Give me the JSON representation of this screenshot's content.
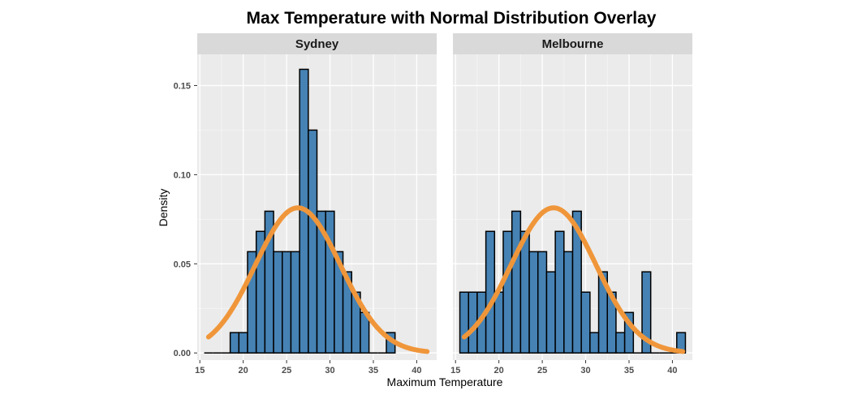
{
  "chart_data": {
    "type": "histogram",
    "title": "Max Temperature with Normal Distribution Overlay",
    "xlabel": "Maximum Temperature",
    "ylabel": "Density",
    "xlim": [
      14.7,
      42.3
    ],
    "ylim": [
      -0.004,
      0.1675
    ],
    "x_ticks": [
      15,
      20,
      25,
      30,
      35,
      40
    ],
    "x_tick_labels": [
      "15",
      "20",
      "25",
      "30",
      "35",
      "40"
    ],
    "y_ticks": [
      0.0,
      0.05,
      0.1,
      0.15
    ],
    "y_tick_labels": [
      "0.00",
      "0.05",
      "0.10",
      "0.15"
    ],
    "grid": true,
    "bin_width": 1,
    "bar_color": "#4682B4",
    "bar_outline_color": "#000000",
    "curve_color": "#F0963A",
    "panel_background": "#EBEBEB",
    "strip_background": "#D9D9D9",
    "panels": [
      {
        "label": "Sydney",
        "bins": [
          {
            "x": 16,
            "density": 0.0
          },
          {
            "x": 17,
            "density": 0.0
          },
          {
            "x": 18,
            "density": 0.0
          },
          {
            "x": 19,
            "density": 0.0114
          },
          {
            "x": 20,
            "density": 0.0114
          },
          {
            "x": 21,
            "density": 0.0568
          },
          {
            "x": 22,
            "density": 0.0682
          },
          {
            "x": 23,
            "density": 0.0795
          },
          {
            "x": 24,
            "density": 0.0568
          },
          {
            "x": 25,
            "density": 0.0568
          },
          {
            "x": 26,
            "density": 0.0568
          },
          {
            "x": 27,
            "density": 0.1591
          },
          {
            "x": 28,
            "density": 0.125
          },
          {
            "x": 29,
            "density": 0.0795
          },
          {
            "x": 30,
            "density": 0.0795
          },
          {
            "x": 31,
            "density": 0.0568
          },
          {
            "x": 32,
            "density": 0.0455
          },
          {
            "x": 33,
            "density": 0.0341
          },
          {
            "x": 34,
            "density": 0.0227
          },
          {
            "x": 35,
            "density": 0.0
          },
          {
            "x": 36,
            "density": 0.0
          },
          {
            "x": 37,
            "density": 0.0114
          }
        ],
        "normal_curve": {
          "mean": 26.3,
          "sd": 4.9,
          "x_range": [
            16.0,
            41.2
          ]
        }
      },
      {
        "label": "Melbourne",
        "bins": [
          {
            "x": 16,
            "density": 0.0341
          },
          {
            "x": 17,
            "density": 0.0341
          },
          {
            "x": 18,
            "density": 0.0341
          },
          {
            "x": 19,
            "density": 0.0682
          },
          {
            "x": 20,
            "density": 0.0341
          },
          {
            "x": 21,
            "density": 0.0682
          },
          {
            "x": 22,
            "density": 0.0795
          },
          {
            "x": 23,
            "density": 0.0682
          },
          {
            "x": 24,
            "density": 0.0568
          },
          {
            "x": 25,
            "density": 0.0568
          },
          {
            "x": 26,
            "density": 0.0455
          },
          {
            "x": 27,
            "density": 0.0682
          },
          {
            "x": 28,
            "density": 0.0568
          },
          {
            "x": 29,
            "density": 0.0795
          },
          {
            "x": 30,
            "density": 0.0341
          },
          {
            "x": 31,
            "density": 0.0114
          },
          {
            "x": 32,
            "density": 0.0455
          },
          {
            "x": 33,
            "density": 0.0341
          },
          {
            "x": 34,
            "density": 0.0114
          },
          {
            "x": 35,
            "density": 0.0227
          },
          {
            "x": 36,
            "density": 0.0
          },
          {
            "x": 37,
            "density": 0.0455
          },
          {
            "x": 38,
            "density": 0.0
          },
          {
            "x": 39,
            "density": 0.0
          },
          {
            "x": 40,
            "density": 0.0
          },
          {
            "x": 41,
            "density": 0.0114
          }
        ],
        "normal_curve": {
          "mean": 26.3,
          "sd": 4.9,
          "x_range": [
            16.0,
            41.2
          ]
        }
      }
    ]
  }
}
